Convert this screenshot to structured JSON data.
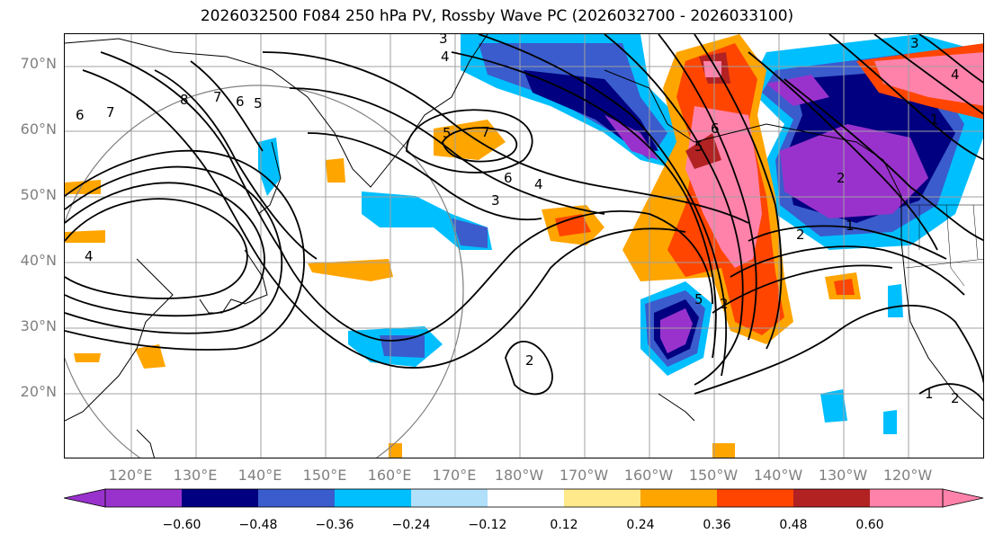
{
  "title": "2026032500 F084 250 hPa PV, Rossby Wave PC (2026032700 - 2026033100)",
  "lat_labels": [
    "70°N",
    "60°N",
    "50°N",
    "40°N",
    "30°N",
    "20°N"
  ],
  "lon_labels": [
    "120°E",
    "130°E",
    "140°E",
    "150°E",
    "160°E",
    "170°E",
    "180°W",
    "170°W",
    "160°W",
    "150°W",
    "140°W",
    "130°W",
    "120°W"
  ],
  "colorbar": {
    "colors": [
      "#9932cc",
      "#000080",
      "#3a5ccc",
      "#00bfff",
      "#b0e0fa",
      "#ffffff",
      "#ffe98a",
      "#ffa500",
      "#ff4500",
      "#b22222",
      "#ff82ab"
    ],
    "tick_labels": [
      "−0.60",
      "−0.48",
      "−0.36",
      "−0.24",
      "−0.12",
      "0.12",
      "0.24",
      "0.36",
      "0.48",
      "0.60"
    ]
  },
  "contour_labels": [
    "3",
    "4",
    "5",
    "6",
    "7",
    "8",
    "6",
    "7",
    "5",
    "7",
    "6",
    "4",
    "3",
    "4",
    "2",
    "2",
    "2",
    "5",
    "6",
    "1",
    "2",
    "1",
    "1",
    "5",
    "4",
    "3",
    "2"
  ]
}
